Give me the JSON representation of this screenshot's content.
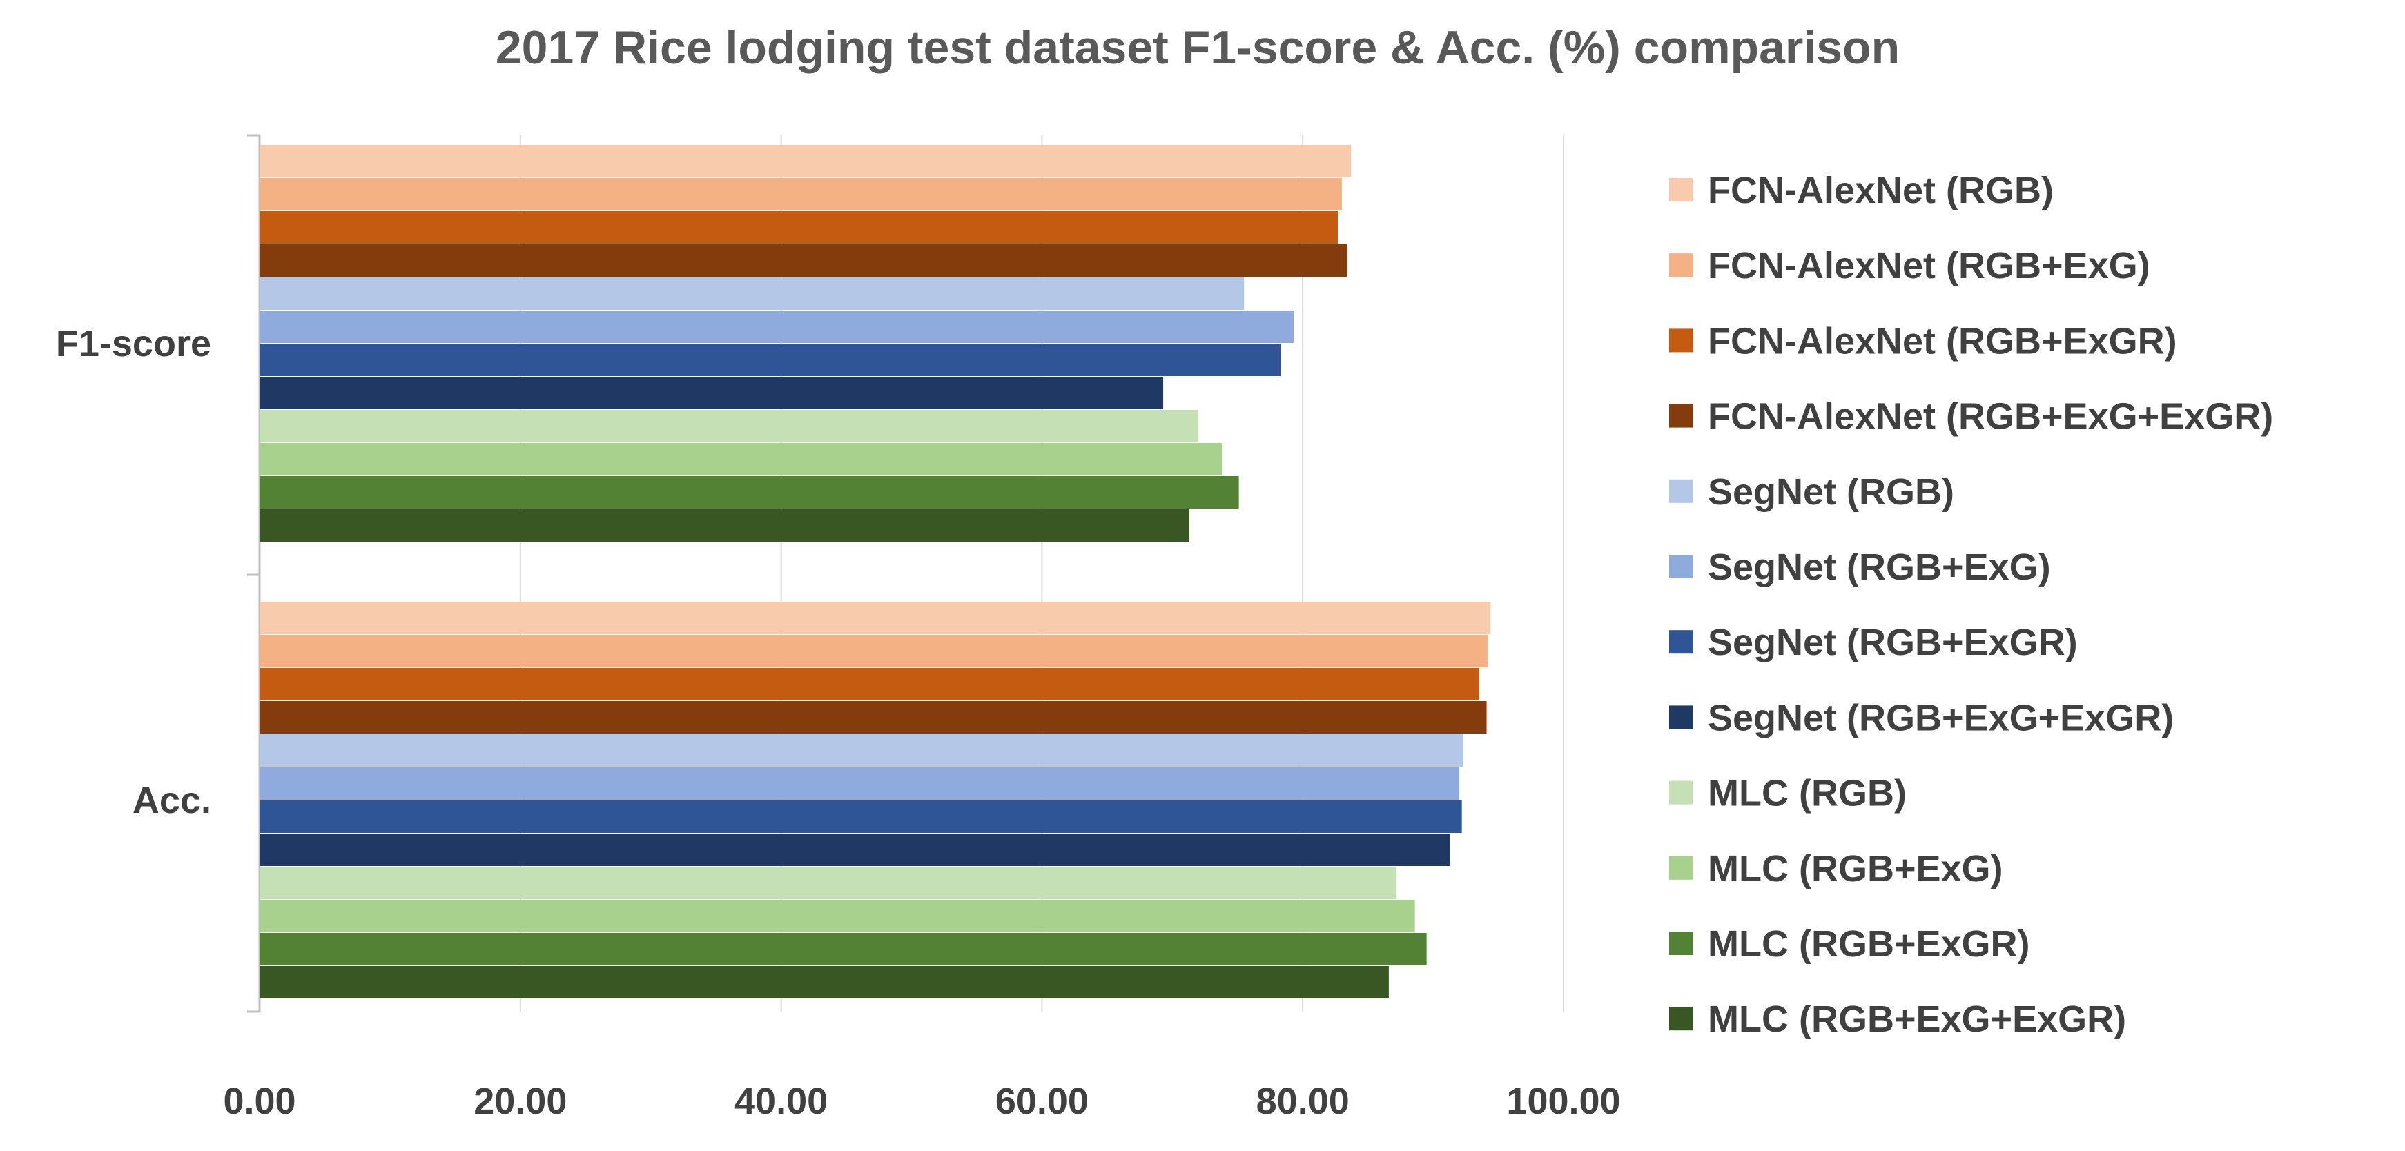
{
  "chart_data": {
    "type": "bar",
    "orientation": "horizontal",
    "title": "2017 Rice lodging test dataset F1-score & Acc. (%) comparison",
    "xlabel": "",
    "ylabel": "",
    "xlim": [
      0,
      100
    ],
    "x_ticks": [
      "0.00",
      "20.00",
      "40.00",
      "60.00",
      "80.00",
      "100.00"
    ],
    "grid": true,
    "legend_position": "right",
    "categories": [
      "F1-score",
      "Acc."
    ],
    "series": [
      {
        "name": "FCN-AlexNet (RGB)",
        "color": "#f8cbad",
        "values": [
          83.7,
          94.4
        ]
      },
      {
        "name": "FCN-AlexNet (RGB+ExG)",
        "color": "#f4b183",
        "values": [
          83.0,
          94.2
        ]
      },
      {
        "name": "FCN-AlexNet (RGB+ExGR)",
        "color": "#c55a11",
        "values": [
          82.7,
          93.5
        ]
      },
      {
        "name": "FCN-AlexNet (RGB+ExG+ExGR)",
        "color": "#843c0c",
        "values": [
          83.4,
          94.1
        ]
      },
      {
        "name": "SegNet (RGB)",
        "color": "#b4c7e7",
        "values": [
          75.5,
          92.3
        ]
      },
      {
        "name": "SegNet (RGB+ExG)",
        "color": "#8faadc",
        "values": [
          79.3,
          92.0
        ]
      },
      {
        "name": "SegNet (RGB+ExGR)",
        "color": "#2f5597",
        "values": [
          78.3,
          92.2
        ]
      },
      {
        "name": "SegNet (RGB+ExG+ExGR)",
        "color": "#203864",
        "values": [
          69.3,
          91.3
        ]
      },
      {
        "name": "MLC (RGB)",
        "color": "#c5e0b4",
        "values": [
          72.0,
          87.2
        ]
      },
      {
        "name": "MLC (RGB+ExG)",
        "color": "#a9d18e",
        "values": [
          73.8,
          88.6
        ]
      },
      {
        "name": "MLC (RGB+ExGR)",
        "color": "#548235",
        "values": [
          75.1,
          89.5
        ]
      },
      {
        "name": "MLC (RGB+ExG+ExGR)",
        "color": "#385723",
        "values": [
          71.3,
          86.6
        ]
      }
    ]
  }
}
